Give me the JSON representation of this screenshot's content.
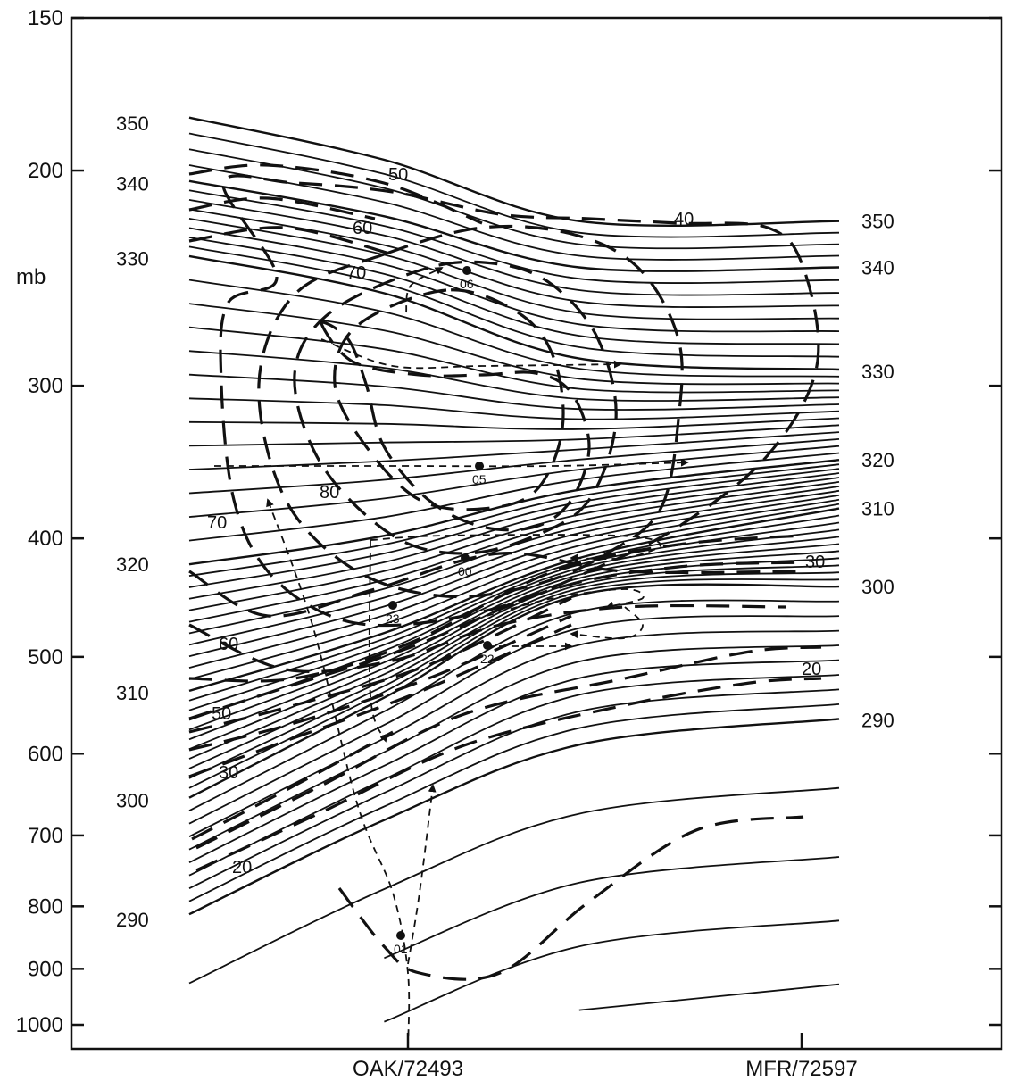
{
  "chart_data": {
    "type": "line",
    "title": "",
    "xlabel": "",
    "ylabel": "mb",
    "y_scale": "log",
    "ylim": [
      1000,
      150
    ],
    "y_ticks": [
      150,
      200,
      300,
      400,
      500,
      600,
      700,
      800,
      900,
      1000
    ],
    "y_tick_labels": [
      "150",
      "200",
      "300",
      "400",
      "500",
      "600",
      "700",
      "800",
      "900",
      "1000"
    ],
    "x_ticks": [
      {
        "label": "OAK/72493"
      },
      {
        "label": "MFR/72597"
      }
    ],
    "isentrope_labels_left": [
      {
        "label": "350",
        "p": 183
      },
      {
        "label": "340",
        "p": 205
      },
      {
        "label": "330",
        "p": 236
      },
      {
        "label": "320",
        "p": 420
      },
      {
        "label": "310",
        "p": 535
      },
      {
        "label": "300",
        "p": 655
      },
      {
        "label": "290",
        "p": 820
      }
    ],
    "isentrope_labels_right": [
      {
        "label": "350",
        "p": 220
      },
      {
        "label": "340",
        "p": 240
      },
      {
        "label": "330",
        "p": 292
      },
      {
        "label": "320",
        "p": 345
      },
      {
        "label": "310",
        "p": 378
      },
      {
        "label": "300",
        "p": 438
      },
      {
        "label": "290",
        "p": 563
      }
    ],
    "wind_speed_labels": [
      "50",
      "60",
      "70",
      "80",
      "70",
      "60",
      "50",
      "30",
      "20",
      "40",
      "30",
      "20"
    ],
    "trajectory_time_labels": [
      "06",
      "05",
      "00",
      "23",
      "22",
      "01"
    ],
    "series": [
      {
        "name": "350",
        "points": [
          [
            0.0,
            181
          ],
          [
            0.3,
            196
          ],
          [
            0.6,
            220
          ],
          [
            1.0,
            220
          ]
        ]
      },
      {
        "name": "340",
        "points": [
          [
            0.0,
            204
          ],
          [
            0.3,
            218
          ],
          [
            0.6,
            240
          ],
          [
            1.0,
            240
          ]
        ]
      },
      {
        "name": "330",
        "points": [
          [
            0.0,
            235
          ],
          [
            0.3,
            252
          ],
          [
            0.6,
            285
          ],
          [
            1.0,
            291
          ]
        ]
      },
      {
        "name": "320",
        "points": [
          [
            0.0,
            420
          ],
          [
            0.3,
            398
          ],
          [
            0.6,
            365
          ],
          [
            1.0,
            345
          ]
        ]
      },
      {
        "name": "310",
        "points": [
          [
            0.0,
            533
          ],
          [
            0.3,
            478
          ],
          [
            0.6,
            415
          ],
          [
            1.0,
            378
          ]
        ]
      },
      {
        "name": "300",
        "points": [
          [
            0.0,
            652
          ],
          [
            0.3,
            540
          ],
          [
            0.6,
            445
          ],
          [
            1.0,
            438
          ]
        ]
      },
      {
        "name": "290",
        "points": [
          [
            0.0,
            812
          ],
          [
            0.3,
            680
          ],
          [
            0.6,
            590
          ],
          [
            1.0,
            562
          ]
        ]
      }
    ]
  }
}
